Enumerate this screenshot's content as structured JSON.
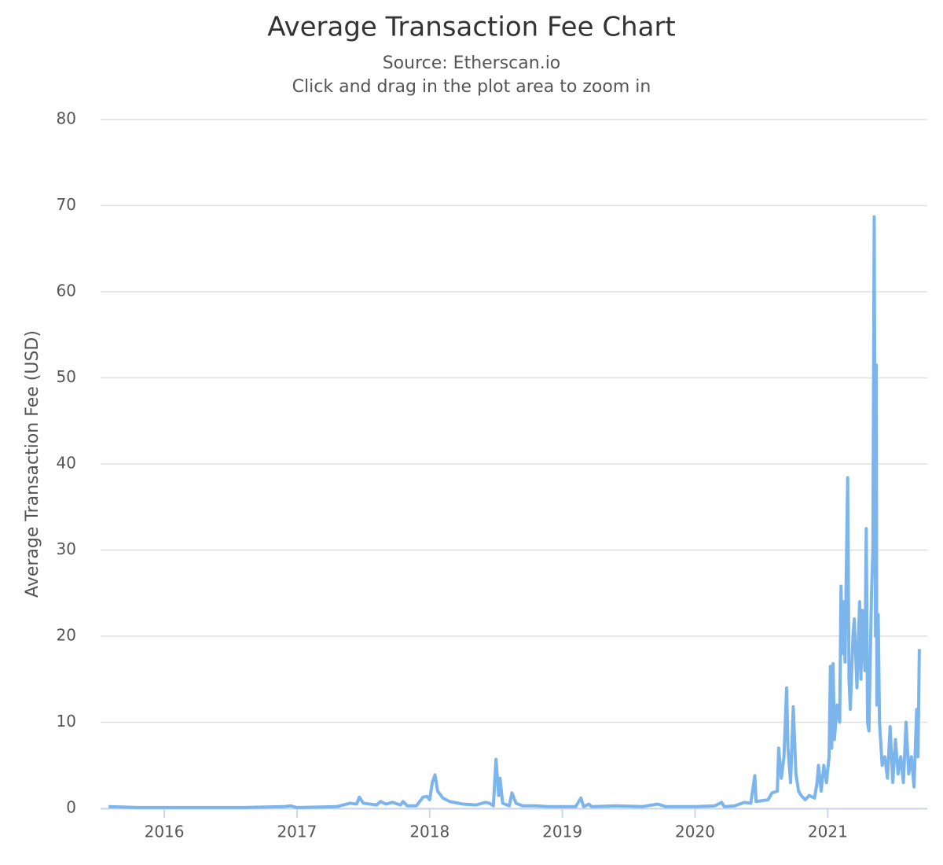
{
  "chart_data": {
    "type": "line",
    "title": "Average Transaction Fee Chart",
    "subtitle": [
      "Source: Etherscan.io",
      "Click and drag in the plot area to zoom in"
    ],
    "y_label": "Average Transaction Fee (USD)",
    "xlim": [
      2015.52,
      2021.75
    ],
    "ylim": [
      0,
      80
    ],
    "xticks": [
      2016,
      2017,
      2018,
      2019,
      2020,
      2021
    ],
    "yticks": [
      0,
      10,
      20,
      30,
      40,
      50,
      60,
      70,
      80
    ],
    "grid": true,
    "series": [
      {
        "name": "Average Transaction Fee",
        "color": "#7cb5ec",
        "x": [
          2015.58,
          2015.8,
          2016.2,
          2016.6,
          2016.9,
          2016.95,
          2017.0,
          2017.3,
          2017.4,
          2017.45,
          2017.47,
          2017.5,
          2017.6,
          2017.63,
          2017.67,
          2017.72,
          2017.78,
          2017.8,
          2017.83,
          2017.9,
          2017.95,
          2017.98,
          2018.0,
          2018.02,
          2018.04,
          2018.06,
          2018.1,
          2018.15,
          2018.25,
          2018.35,
          2018.42,
          2018.45,
          2018.48,
          2018.5,
          2018.52,
          2018.53,
          2018.55,
          2018.6,
          2018.62,
          2018.65,
          2018.7,
          2018.8,
          2018.9,
          2019.0,
          2019.1,
          2019.14,
          2019.16,
          2019.2,
          2019.22,
          2019.4,
          2019.6,
          2019.72,
          2019.78,
          2019.9,
          2020.0,
          2020.15,
          2020.2,
          2020.22,
          2020.3,
          2020.37,
          2020.42,
          2020.45,
          2020.46,
          2020.55,
          2020.58,
          2020.62,
          2020.63,
          2020.65,
          2020.67,
          2020.69,
          2020.7,
          2020.72,
          2020.74,
          2020.76,
          2020.78,
          2020.8,
          2020.83,
          2020.86,
          2020.9,
          2020.92,
          2020.93,
          2020.95,
          2020.97,
          2020.99,
          2021.01,
          2021.02,
          2021.03,
          2021.04,
          2021.05,
          2021.07,
          2021.09,
          2021.1,
          2021.11,
          2021.12,
          2021.13,
          2021.15,
          2021.16,
          2021.17,
          2021.19,
          2021.2,
          2021.22,
          2021.24,
          2021.25,
          2021.26,
          2021.28,
          2021.29,
          2021.3,
          2021.31,
          2021.33,
          2021.34,
          2021.35,
          2021.36,
          2021.365,
          2021.37,
          2021.38,
          2021.39,
          2021.41,
          2021.43,
          2021.45,
          2021.47,
          2021.49,
          2021.51,
          2021.53,
          2021.55,
          2021.57,
          2021.59,
          2021.61,
          2021.63,
          2021.65,
          2021.67,
          2021.68,
          2021.69
        ],
        "values": [
          0.2,
          0.1,
          0.1,
          0.1,
          0.2,
          0.3,
          0.1,
          0.2,
          0.6,
          0.5,
          1.3,
          0.6,
          0.4,
          0.8,
          0.5,
          0.7,
          0.4,
          0.8,
          0.3,
          0.3,
          1.3,
          1.4,
          1.0,
          3.0,
          3.9,
          2.0,
          1.2,
          0.8,
          0.5,
          0.4,
          0.7,
          0.6,
          0.3,
          5.7,
          1.5,
          3.5,
          0.6,
          0.3,
          1.8,
          0.6,
          0.3,
          0.3,
          0.2,
          0.2,
          0.2,
          1.2,
          0.2,
          0.5,
          0.2,
          0.3,
          0.2,
          0.5,
          0.2,
          0.2,
          0.2,
          0.3,
          0.7,
          0.2,
          0.3,
          0.7,
          0.6,
          3.8,
          0.8,
          1.0,
          1.8,
          2.0,
          7.0,
          3.5,
          6.0,
          14.0,
          7.0,
          3.0,
          11.8,
          4.0,
          2.0,
          1.5,
          1.0,
          1.5,
          1.2,
          3.0,
          5.0,
          2.0,
          5.0,
          3.0,
          6.0,
          16.5,
          7.0,
          16.8,
          8.0,
          12.0,
          10.0,
          25.8,
          18.0,
          24.0,
          17.0,
          38.4,
          15.0,
          11.5,
          20.0,
          22.0,
          14.0,
          24.0,
          15.0,
          23.0,
          16.0,
          32.5,
          10.0,
          9.0,
          25.0,
          30.0,
          68.7,
          20.0,
          51.5,
          12.0,
          22.5,
          10.0,
          5.0,
          6.0,
          3.5,
          9.5,
          3.0,
          8.0,
          4.0,
          6.0,
          3.0,
          10.0,
          4.0,
          6.0,
          2.5,
          11.5,
          6.0,
          18.5
        ]
      }
    ]
  }
}
